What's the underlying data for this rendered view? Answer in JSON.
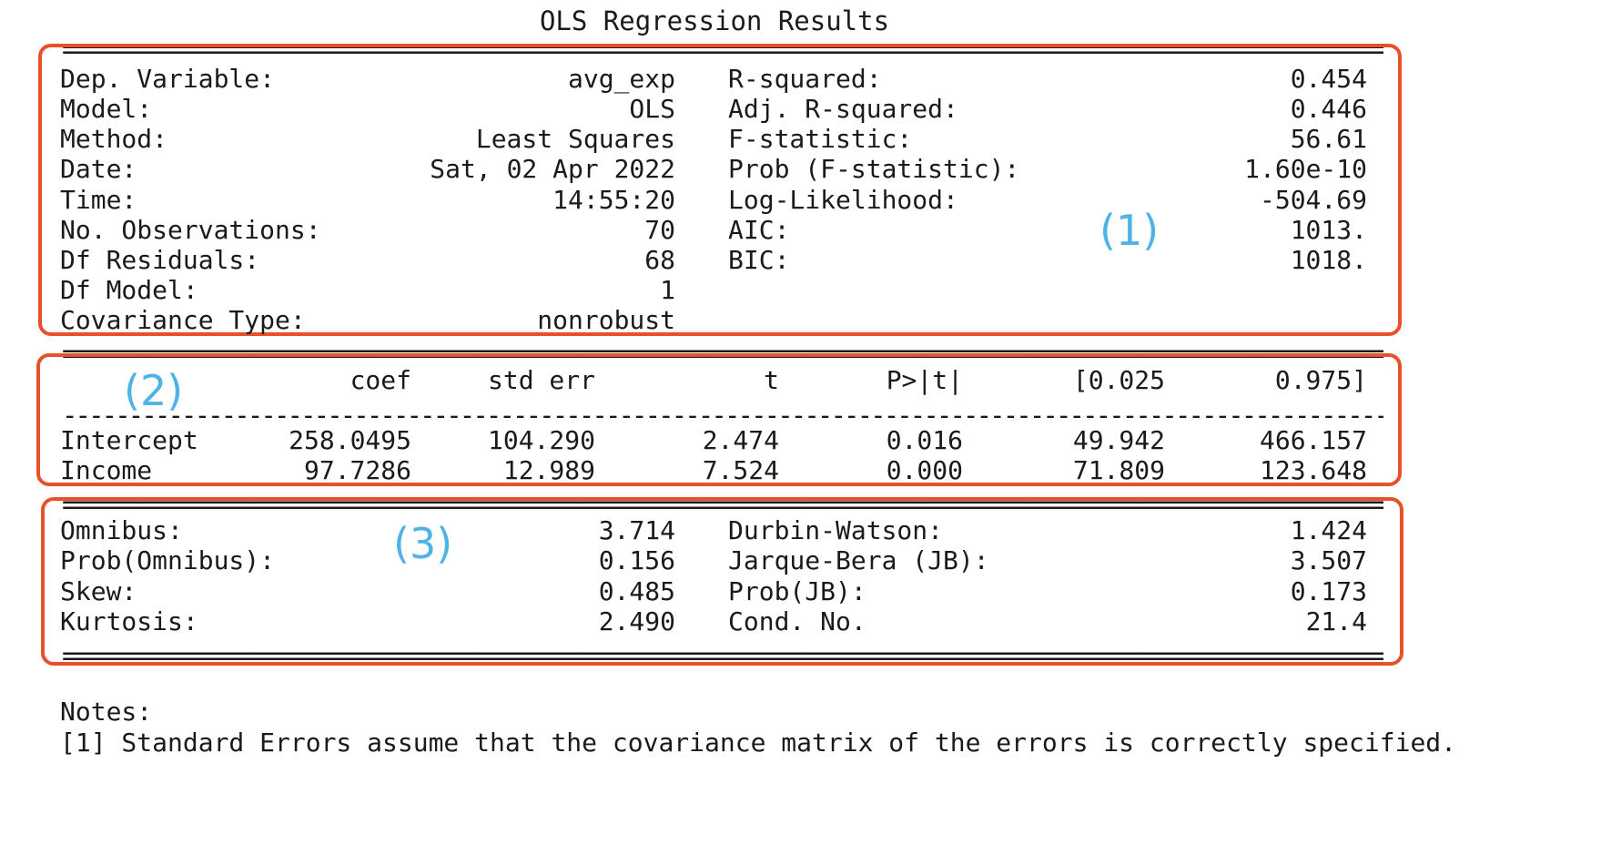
{
  "title": "OLS Regression Results",
  "separator_double": "================================================================================================================",
  "separator_single": "----------------------------------------------------------------------------------------------------------------",
  "section1": {
    "left": [
      {
        "label": "Dep. Variable:",
        "value": "avg_exp"
      },
      {
        "label": "Model:",
        "value": "OLS"
      },
      {
        "label": "Method:",
        "value": "Least Squares"
      },
      {
        "label": "Date:",
        "value": "Sat, 02 Apr 2022"
      },
      {
        "label": "Time:",
        "value": "14:55:20"
      },
      {
        "label": "No. Observations:",
        "value": "70"
      },
      {
        "label": "Df Residuals:",
        "value": "68"
      },
      {
        "label": "Df Model:",
        "value": "1"
      },
      {
        "label": "Covariance Type:",
        "value": "nonrobust"
      }
    ],
    "right": [
      {
        "label": "R-squared:",
        "value": "0.454"
      },
      {
        "label": "Adj. R-squared:",
        "value": "0.446"
      },
      {
        "label": "F-statistic:",
        "value": "56.61"
      },
      {
        "label": "Prob (F-statistic):",
        "value": "1.60e-10"
      },
      {
        "label": "Log-Likelihood:",
        "value": "-504.69"
      },
      {
        "label": "AIC:",
        "value": "1013."
      },
      {
        "label": "BIC:",
        "value": "1018."
      }
    ],
    "marker": "(1)"
  },
  "section2": {
    "headers": [
      "coef",
      "std err",
      "t",
      "P>|t|",
      "[0.025",
      "0.975]"
    ],
    "rows": [
      {
        "name": "Intercept",
        "cells": [
          "258.0495",
          "104.290",
          "2.474",
          "0.016",
          "49.942",
          "466.157"
        ]
      },
      {
        "name": "Income",
        "cells": [
          "97.7286",
          "12.989",
          "7.524",
          "0.000",
          "71.809",
          "123.648"
        ]
      }
    ],
    "marker": "(2)"
  },
  "section3": {
    "left": [
      {
        "label": "Omnibus:",
        "value": "3.714"
      },
      {
        "label": "Prob(Omnibus):",
        "value": "0.156"
      },
      {
        "label": "Skew:",
        "value": "0.485"
      },
      {
        "label": "Kurtosis:",
        "value": "2.490"
      }
    ],
    "right": [
      {
        "label": "Durbin-Watson:",
        "value": "1.424"
      },
      {
        "label": "Jarque-Bera (JB):",
        "value": "3.507"
      },
      {
        "label": "Prob(JB):",
        "value": "0.173"
      },
      {
        "label": "Cond. No.",
        "value": "21.4"
      }
    ],
    "marker": "(3)"
  },
  "notes": {
    "heading": "Notes:",
    "line1": "[1] Standard Errors assume that the covariance matrix of the errors is correctly specified."
  },
  "colors": {
    "box_border": "#e8502a",
    "marker": "#4fb3e6",
    "text": "#1a1a1a"
  }
}
